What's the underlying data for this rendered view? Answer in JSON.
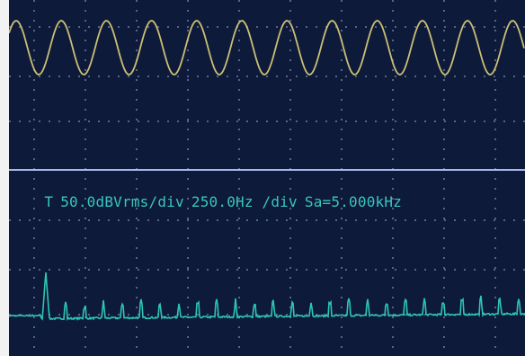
{
  "oscilloscope": {
    "readout": {
      "trace_marker": "T",
      "scale": "50.0dBVrms/div",
      "span": "250.0Hz /div",
      "sample_rate": "Sa=5.000kHz"
    },
    "colors": {
      "screen_background": "#0e1a3a",
      "grid": "#8fa2c6",
      "time_trace": "#d6c878",
      "fft_trace": "#2fd0b8",
      "readout_text": "#37c6c0",
      "separator_line": "#b8c8ff"
    },
    "time_trace": {
      "waveform": "sine",
      "visible_cycles": 11
    },
    "fft_trace": {
      "fundamental_peak": "highest",
      "noise_floor_relative": 0.1
    },
    "grid": {
      "divisions_x": 10,
      "divisions_y": 8,
      "style": "dotted"
    }
  }
}
